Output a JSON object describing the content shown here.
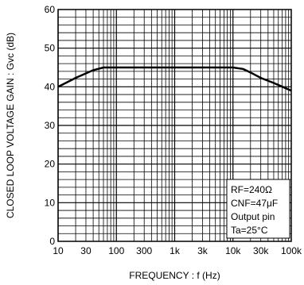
{
  "chart_data": {
    "type": "line",
    "xlabel": "FREQUENCY : f (Hz)",
    "ylabel": "CLOSED  LOOP  VOLTAGE  GAIN : Gvc (dB)",
    "x_scale": "log",
    "xlim": [
      10,
      100000
    ],
    "ylim": [
      0,
      60
    ],
    "grid": true,
    "y_ticks": [
      "0",
      "10",
      "20",
      "30",
      "40",
      "50",
      "60"
    ],
    "y_tick_values": [
      0,
      10,
      20,
      30,
      40,
      50,
      60
    ],
    "x_ticks": [
      "10",
      "30",
      "100",
      "300",
      "1k",
      "3k",
      "10k",
      "30k",
      "100k"
    ],
    "x_tick_values": [
      10,
      30,
      100,
      300,
      1000,
      3000,
      10000,
      30000,
      100000
    ],
    "series": [
      {
        "x": [
          10,
          20,
          40,
          60,
          100,
          1000,
          10000,
          15000,
          20000,
          30000,
          50000,
          100000
        ],
        "y": [
          40,
          42.3,
          44.3,
          45,
          45,
          45,
          45,
          44.6,
          43.7,
          42.3,
          41,
          39
        ]
      }
    ],
    "legend": {
      "position": "bottom-right",
      "lines": [
        "RF=240Ω",
        "CNF=47μF",
        "Output pin",
        "Ta=25°C"
      ]
    }
  }
}
